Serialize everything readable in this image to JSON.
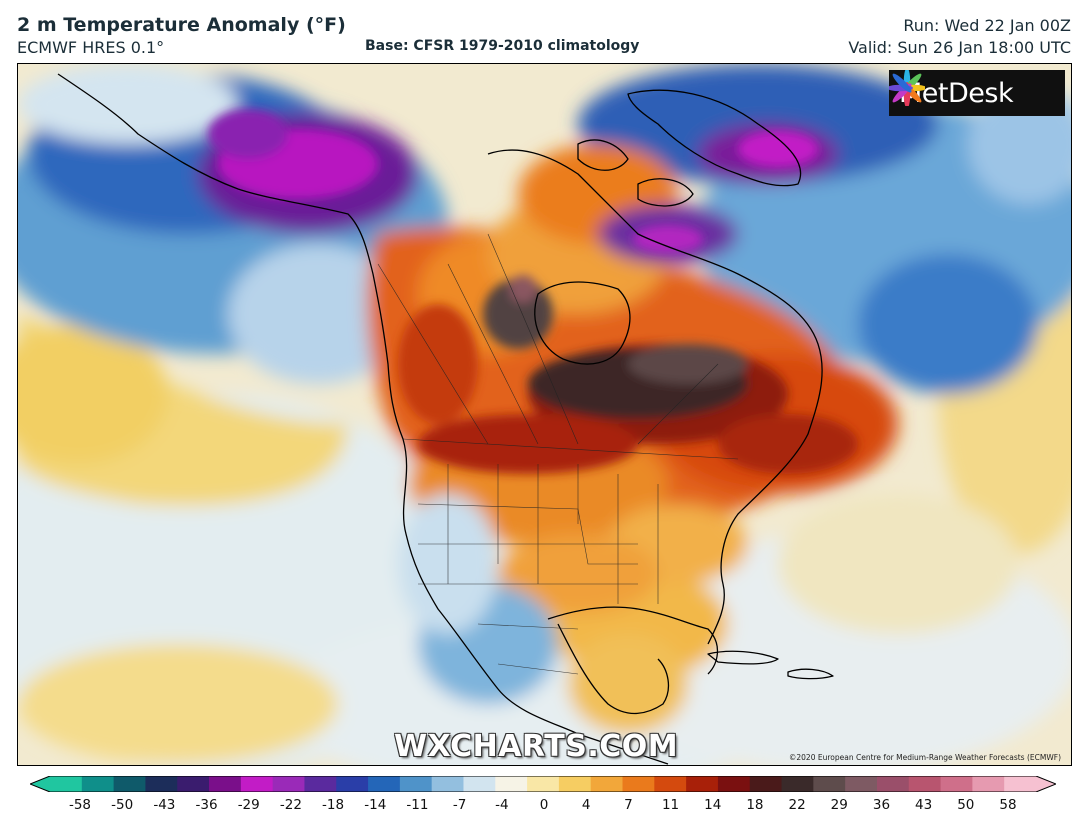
{
  "header": {
    "title": "2 m Temperature Anomaly (°F)",
    "model": "ECMWF HRES 0.1°",
    "base": "Base: CFSR 1979-2010 climatology",
    "run": "Run: Wed 22 Jan 00Z",
    "valid": "Valid: Sun 26 Jan 18:00 UTC"
  },
  "map": {
    "logo_text": "MetDesk",
    "watermark": "WXCHARTS.COM",
    "copyright": "©2020 European Centre for Medium-Range Weather Forecasts (ECMWF)"
  },
  "colorbar": {
    "labels": [
      "-58",
      "-50",
      "-43",
      "-36",
      "-29",
      "-22",
      "-18",
      "-14",
      "-11",
      "-7",
      "-4",
      "0",
      "4",
      "7",
      "11",
      "14",
      "18",
      "22",
      "29",
      "36",
      "43",
      "50",
      "58"
    ],
    "colors": [
      "#20c6a0",
      "#0f8f8a",
      "#0f5a6a",
      "#1c2d5a",
      "#3a1c6e",
      "#7a0f8a",
      "#c21cc6",
      "#9a2ab8",
      "#5a2a9e",
      "#2a3ea8",
      "#2466b8",
      "#4f93c9",
      "#93bfdf",
      "#d2e4ef",
      "#f6f3e6",
      "#f9e7a6",
      "#f6cd62",
      "#f2a73a",
      "#ea7a1c",
      "#d44a0e",
      "#a82009",
      "#7a1010",
      "#4a1a1a",
      "#3a2a2a",
      "#5e4c4c",
      "#7e5a63",
      "#9a4f6a",
      "#b8556f",
      "#cf6f8a",
      "#e69ab0",
      "#f6c1d1"
    ]
  }
}
